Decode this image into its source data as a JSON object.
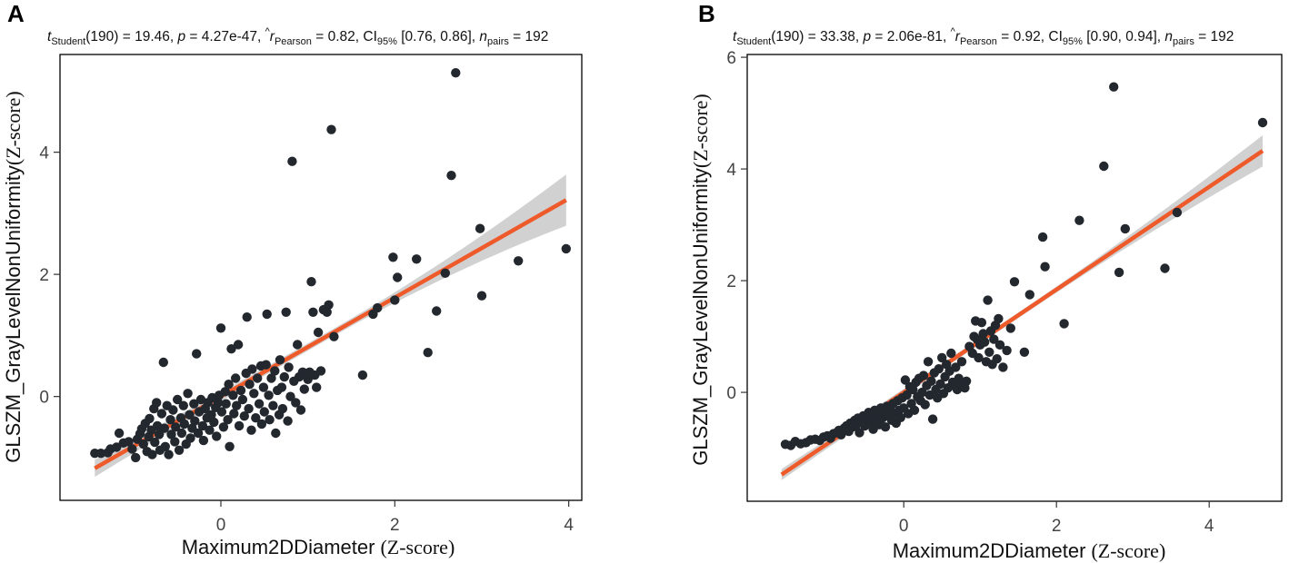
{
  "figure": {
    "panels": [
      {
        "label": "A",
        "subtitle": {
          "t_symbol": "t",
          "t_sub": "Student",
          "t_df": "(190)",
          "t_value": " = 19.46, ",
          "p_symbol": "p",
          "p_value": " = 4.27e-47, ",
          "r_symbol": "r",
          "r_hat": "^",
          "r_sub": "Pearson",
          "r_value": " = 0.82, ",
          "ci_symbol": "CI",
          "ci_sub": "95%",
          "ci_value": " [0.76, 0.86], ",
          "n_symbol": "n",
          "n_sub": "pairs",
          "n_value": " = 192"
        },
        "xlabel": "Maximum2DDiameter",
        "xlabel_unit": "(Z-score)",
        "ylabel": "GLSZM_GrayLevelNonUniformity",
        "ylabel_unit": "(Z-score)"
      },
      {
        "label": "B",
        "subtitle": {
          "t_symbol": "t",
          "t_sub": "Student",
          "t_df": "(190)",
          "t_value": " = 33.38, ",
          "p_symbol": "p",
          "p_value": " = 2.06e-81, ",
          "r_symbol": "r",
          "r_hat": "^",
          "r_sub": "Pearson",
          "r_value": " = 0.92, ",
          "ci_symbol": "CI",
          "ci_sub": "95%",
          "ci_value": " [0.90, 0.94], ",
          "n_symbol": "n",
          "n_sub": "pairs",
          "n_value": " = 192"
        },
        "xlabel": "Maximum2DDiameter",
        "xlabel_unit": "(Z-score)",
        "ylabel": "GLSZM_GrayLevelNonUniformity",
        "ylabel_unit": "(Z-score)"
      }
    ]
  },
  "colors": {
    "points": "#23272e",
    "fit_line": "#ee5a2a",
    "ci_band": "#c9c9c9"
  },
  "chart_data": [
    {
      "type": "scatter",
      "title": "A",
      "xlabel": "Maximum2DDiameter (Z-score)",
      "ylabel": "GLSZM_GrayLevelNonUniformity (Z-score)",
      "xlim": [
        -1.85,
        4.15
      ],
      "ylim": [
        -1.7,
        5.6
      ],
      "xticks": [
        0,
        2,
        4
      ],
      "yticks": [
        0,
        2,
        4
      ],
      "grid": false,
      "fit": {
        "x": [
          -1.45,
          3.97
        ],
        "intercept": 0.0,
        "slope": 0.81,
        "ci_half_width": [
          0.14,
          0.06,
          0.42
        ]
      },
      "points": [
        [
          -1.45,
          -0.93
        ],
        [
          -1.38,
          -0.93
        ],
        [
          -1.3,
          -0.92
        ],
        [
          -1.27,
          -0.86
        ],
        [
          -1.2,
          -0.83
        ],
        [
          -1.17,
          -0.6
        ],
        [
          -1.12,
          -0.76
        ],
        [
          -1.06,
          -0.74
        ],
        [
          -1.02,
          -0.86
        ],
        [
          -0.98,
          -1.0
        ],
        [
          -0.96,
          -0.7
        ],
        [
          -0.93,
          -0.61
        ],
        [
          -0.91,
          -0.53
        ],
        [
          -0.89,
          -0.78
        ],
        [
          -0.87,
          -0.44
        ],
        [
          -0.85,
          -0.9
        ],
        [
          -0.83,
          -0.66
        ],
        [
          -0.82,
          -0.36
        ],
        [
          -0.8,
          -0.55
        ],
        [
          -0.79,
          -0.95
        ],
        [
          -0.77,
          -0.2
        ],
        [
          -0.76,
          -0.75
        ],
        [
          -0.74,
          -0.1
        ],
        [
          -0.73,
          -0.48
        ],
        [
          -0.71,
          -0.62
        ],
        [
          -0.7,
          -0.88
        ],
        [
          -0.68,
          -0.28
        ],
        [
          -0.66,
          0.56
        ],
        [
          -0.65,
          -0.52
        ],
        [
          -0.64,
          -0.82
        ],
        [
          -0.62,
          -0.15
        ],
        [
          -0.6,
          -0.95
        ],
        [
          -0.58,
          -0.38
        ],
        [
          -0.57,
          -0.62
        ],
        [
          -0.55,
          -0.22
        ],
        [
          -0.53,
          -0.74
        ],
        [
          -0.52,
          -0.5
        ],
        [
          -0.5,
          -0.05
        ],
        [
          -0.48,
          -0.88
        ],
        [
          -0.46,
          -0.35
        ],
        [
          -0.45,
          -0.6
        ],
        [
          -0.43,
          -0.15
        ],
        [
          -0.42,
          -0.45
        ],
        [
          -0.4,
          -0.78
        ],
        [
          -0.38,
          0.05
        ],
        [
          -0.36,
          -0.3
        ],
        [
          -0.35,
          -0.68
        ],
        [
          -0.33,
          -0.52
        ],
        [
          -0.31,
          -0.12
        ],
        [
          -0.3,
          -0.4
        ],
        [
          -0.28,
          0.7
        ],
        [
          -0.26,
          -0.6
        ],
        [
          -0.25,
          -0.25
        ],
        [
          -0.23,
          -0.05
        ],
        [
          -0.21,
          -0.48
        ],
        [
          -0.2,
          -0.72
        ],
        [
          -0.18,
          -0.2
        ],
        [
          -0.16,
          -0.35
        ],
        [
          -0.15,
          -0.1
        ],
        [
          -0.13,
          -0.55
        ],
        [
          -0.11,
          -0.3
        ],
        [
          -0.1,
          -0.02
        ],
        [
          -0.08,
          -0.42
        ],
        [
          -0.06,
          -0.18
        ],
        [
          -0.05,
          -0.65
        ],
        [
          -0.03,
          -0.1
        ],
        [
          -0.02,
          0.02
        ],
        [
          0.0,
          1.12
        ],
        [
          0.01,
          -0.25
        ],
        [
          0.03,
          -0.5
        ],
        [
          0.05,
          0.08
        ],
        [
          0.06,
          -0.12
        ],
        [
          0.08,
          -0.38
        ],
        [
          0.09,
          0.2
        ],
        [
          0.1,
          -0.82
        ],
        [
          0.12,
          0.78
        ],
        [
          0.14,
          0.02
        ],
        [
          0.15,
          -0.28
        ],
        [
          0.17,
          0.3
        ],
        [
          0.18,
          -0.15
        ],
        [
          0.2,
          0.85
        ],
        [
          0.21,
          -0.48
        ],
        [
          0.23,
          0.1
        ],
        [
          0.25,
          -0.05
        ],
        [
          0.27,
          -0.32
        ],
        [
          0.29,
          0.38
        ],
        [
          0.3,
          1.3
        ],
        [
          0.32,
          -0.2
        ],
        [
          0.33,
          0.2
        ],
        [
          0.35,
          -0.55
        ],
        [
          0.36,
          0.45
        ],
        [
          0.38,
          0.05
        ],
        [
          0.4,
          -0.35
        ],
        [
          0.42,
          0.3
        ],
        [
          0.44,
          -0.12
        ],
        [
          0.46,
          0.5
        ],
        [
          0.47,
          -0.45
        ],
        [
          0.49,
          0.15
        ],
        [
          0.5,
          -0.25
        ],
        [
          0.52,
          0.52
        ],
        [
          0.53,
          1.35
        ],
        [
          0.55,
          0.02
        ],
        [
          0.56,
          -0.38
        ],
        [
          0.58,
          0.3
        ],
        [
          0.6,
          -0.15
        ],
        [
          0.62,
          0.42
        ],
        [
          0.63,
          -0.6
        ],
        [
          0.65,
          0.1
        ],
        [
          0.67,
          -0.3
        ],
        [
          0.68,
          0.6
        ],
        [
          0.7,
          0.15
        ],
        [
          0.71,
          -0.2
        ],
        [
          0.73,
          0.32
        ],
        [
          0.75,
          1.38
        ],
        [
          0.77,
          -0.4
        ],
        [
          0.78,
          0.48
        ],
        [
          0.8,
          0.0
        ],
        [
          0.82,
          3.85
        ],
        [
          0.84,
          0.25
        ],
        [
          0.86,
          -0.1
        ],
        [
          0.88,
          0.85
        ],
        [
          0.9,
          0.32
        ],
        [
          0.92,
          -0.22
        ],
        [
          0.94,
          0.4
        ],
        [
          0.96,
          0.12
        ],
        [
          0.98,
          0.38
        ],
        [
          1.0,
          0.28
        ],
        [
          1.02,
          0.4
        ],
        [
          1.04,
          1.88
        ],
        [
          1.06,
          1.38
        ],
        [
          1.08,
          0.35
        ],
        [
          1.1,
          0.15
        ],
        [
          1.12,
          1.05
        ],
        [
          1.15,
          0.42
        ],
        [
          1.18,
          1.42
        ],
        [
          1.22,
          1.38
        ],
        [
          1.24,
          1.5
        ],
        [
          1.27,
          4.37
        ],
        [
          1.3,
          0.98
        ],
        [
          1.63,
          0.35
        ],
        [
          1.75,
          1.35
        ],
        [
          1.8,
          1.45
        ],
        [
          1.98,
          2.28
        ],
        [
          2.0,
          1.58
        ],
        [
          2.03,
          1.95
        ],
        [
          2.25,
          2.25
        ],
        [
          2.38,
          0.72
        ],
        [
          2.48,
          1.4
        ],
        [
          2.58,
          2.02
        ],
        [
          2.65,
          3.62
        ],
        [
          2.7,
          5.3
        ],
        [
          2.98,
          2.75
        ],
        [
          3.0,
          1.65
        ],
        [
          3.42,
          2.22
        ],
        [
          3.97,
          2.42
        ]
      ]
    },
    {
      "type": "scatter",
      "title": "B",
      "xlabel": "Maximum2DDiameter (Z-score)",
      "ylabel": "GLSZM_GrayLevelNonUniformity (Z-score)",
      "xlim": [
        -2.05,
        4.95
      ],
      "ylim": [
        -1.95,
        6.05
      ],
      "xticks": [
        0,
        2,
        4
      ],
      "yticks": [
        0,
        2,
        4,
        6
      ],
      "grid": false,
      "fit": {
        "x": [
          -1.6,
          4.7
        ],
        "intercept": 0.0,
        "slope": 0.92,
        "ci_half_width": [
          0.1,
          0.05,
          0.28
        ]
      },
      "points": [
        [
          -1.55,
          -0.93
        ],
        [
          -1.48,
          -0.95
        ],
        [
          -1.42,
          -0.88
        ],
        [
          -1.35,
          -0.92
        ],
        [
          -1.28,
          -0.9
        ],
        [
          -1.22,
          -0.85
        ],
        [
          -1.16,
          -0.84
        ],
        [
          -1.1,
          -0.86
        ],
        [
          -1.05,
          -0.8
        ],
        [
          -1.0,
          -0.78
        ],
        [
          -0.96,
          -0.82
        ],
        [
          -0.92,
          -0.74
        ],
        [
          -0.88,
          -0.72
        ],
        [
          -0.85,
          -0.68
        ],
        [
          -0.82,
          -0.76
        ],
        [
          -0.78,
          -0.64
        ],
        [
          -0.75,
          -0.6
        ],
        [
          -0.72,
          -0.7
        ],
        [
          -0.7,
          -0.55
        ],
        [
          -0.67,
          -0.62
        ],
        [
          -0.64,
          -0.5
        ],
        [
          -0.62,
          -0.58
        ],
        [
          -0.6,
          -0.46
        ],
        [
          -0.58,
          -0.72
        ],
        [
          -0.55,
          -0.52
        ],
        [
          -0.53,
          -0.42
        ],
        [
          -0.51,
          -0.6
        ],
        [
          -0.49,
          -0.48
        ],
        [
          -0.46,
          -0.36
        ],
        [
          -0.44,
          -0.55
        ],
        [
          -0.42,
          -0.44
        ],
        [
          -0.4,
          -0.66
        ],
        [
          -0.38,
          -0.32
        ],
        [
          -0.36,
          -0.5
        ],
        [
          -0.34,
          -0.4
        ],
        [
          -0.32,
          -0.58
        ],
        [
          -0.3,
          -0.28
        ],
        [
          -0.28,
          -0.46
        ],
        [
          -0.26,
          -0.35
        ],
        [
          -0.24,
          -0.62
        ],
        [
          -0.22,
          -0.25
        ],
        [
          -0.2,
          -0.42
        ],
        [
          -0.18,
          -0.3
        ],
        [
          -0.16,
          -0.5
        ],
        [
          -0.14,
          -0.2
        ],
        [
          -0.12,
          -0.38
        ],
        [
          -0.1,
          -0.55
        ],
        [
          -0.08,
          -0.15
        ],
        [
          -0.06,
          -0.32
        ],
        [
          -0.04,
          -0.45
        ],
        [
          -0.02,
          -0.1
        ],
        [
          0.0,
          -0.28
        ],
        [
          0.02,
          0.22
        ],
        [
          0.04,
          -0.05
        ],
        [
          0.06,
          -0.38
        ],
        [
          0.08,
          0.1
        ],
        [
          0.1,
          -0.2
        ],
        [
          0.12,
          0.05
        ],
        [
          0.14,
          -0.32
        ],
        [
          0.16,
          0.18
        ],
        [
          0.18,
          -0.08
        ],
        [
          0.2,
          0.25
        ],
        [
          0.22,
          -0.15
        ],
        [
          0.24,
          0.0
        ],
        [
          0.26,
          0.3
        ],
        [
          0.28,
          -0.22
        ],
        [
          0.3,
          0.12
        ],
        [
          0.32,
          0.55
        ],
        [
          0.34,
          -0.05
        ],
        [
          0.36,
          0.2
        ],
        [
          0.38,
          -0.48
        ],
        [
          0.4,
          0.35
        ],
        [
          0.42,
          0.05
        ],
        [
          0.44,
          -0.1
        ],
        [
          0.46,
          0.42
        ],
        [
          0.48,
          0.15
        ],
        [
          0.5,
          0.62
        ],
        [
          0.52,
          -0.02
        ],
        [
          0.54,
          0.28
        ],
        [
          0.56,
          0.5
        ],
        [
          0.58,
          0.08
        ],
        [
          0.6,
          0.38
        ],
        [
          0.62,
          0.7
        ],
        [
          0.64,
          0.18
        ],
        [
          0.66,
          0.12
        ],
        [
          0.68,
          0.45
        ],
        [
          0.7,
          0.05
        ],
        [
          0.72,
          0.25
        ],
        [
          0.74,
          0.15
        ],
        [
          0.76,
          0.55
        ],
        [
          0.78,
          0.1
        ],
        [
          0.8,
          0.08
        ],
        [
          0.82,
          0.2
        ],
        [
          0.86,
          0.82
        ],
        [
          0.9,
          0.7
        ],
        [
          0.92,
          1.0
        ],
        [
          0.94,
          1.28
        ],
        [
          0.96,
          0.95
        ],
        [
          0.98,
          0.62
        ],
        [
          1.0,
          0.85
        ],
        [
          1.02,
          1.25
        ],
        [
          1.04,
          1.05
        ],
        [
          1.06,
          0.9
        ],
        [
          1.08,
          0.55
        ],
        [
          1.1,
          1.65
        ],
        [
          1.12,
          0.72
        ],
        [
          1.14,
          1.1
        ],
        [
          1.16,
          0.5
        ],
        [
          1.18,
          0.95
        ],
        [
          1.2,
          1.2
        ],
        [
          1.22,
          0.6
        ],
        [
          1.24,
          1.32
        ],
        [
          1.26,
          0.85
        ],
        [
          1.3,
          0.45
        ],
        [
          1.35,
          0.75
        ],
        [
          1.4,
          1.15
        ],
        [
          1.45,
          1.98
        ],
        [
          1.58,
          0.72
        ],
        [
          1.65,
          1.75
        ],
        [
          1.82,
          2.78
        ],
        [
          1.85,
          2.25
        ],
        [
          2.1,
          1.23
        ],
        [
          2.3,
          3.08
        ],
        [
          2.62,
          4.05
        ],
        [
          2.75,
          5.47
        ],
        [
          2.82,
          2.15
        ],
        [
          2.9,
          2.93
        ],
        [
          3.42,
          2.22
        ],
        [
          3.58,
          3.22
        ],
        [
          4.7,
          4.83
        ]
      ]
    }
  ]
}
